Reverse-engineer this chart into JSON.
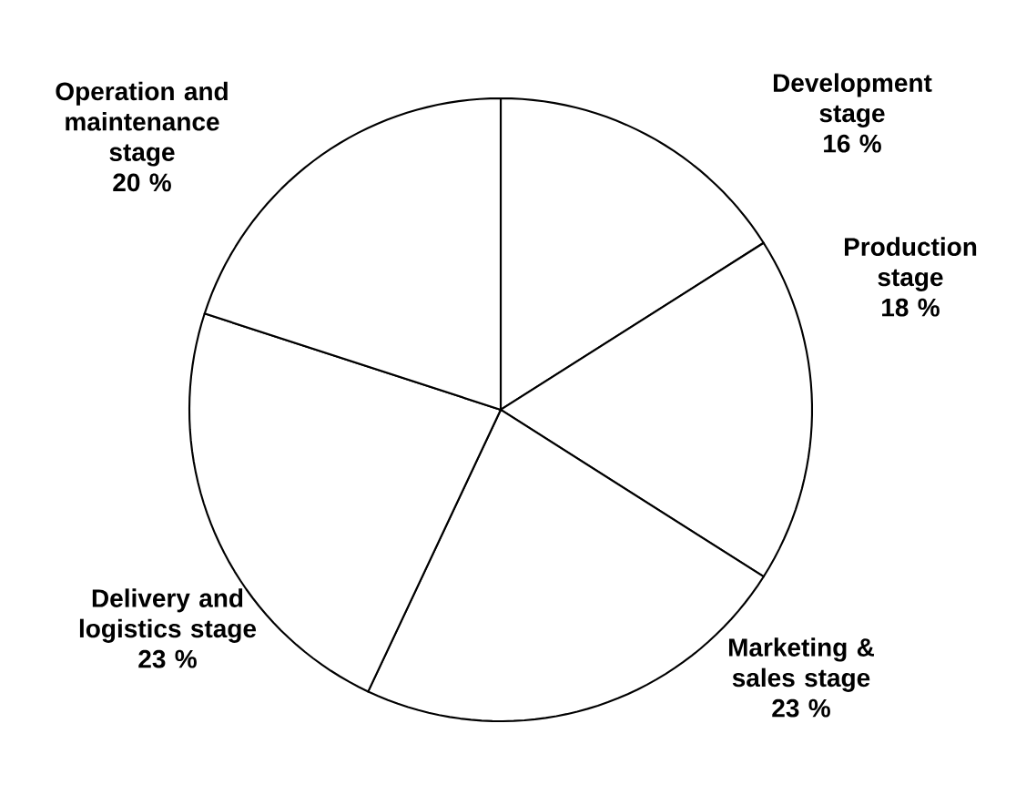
{
  "chart_data": {
    "type": "pie",
    "categories": [
      "Development stage",
      "Production stage",
      "Marketing & sales stage",
      "Delivery and logistics stage",
      "Operation and maintenance stage"
    ],
    "values": [
      16,
      18,
      23,
      23,
      20
    ],
    "value_labels": [
      "16 %",
      "18 %",
      "23 %",
      "23 %",
      "20 %"
    ],
    "colors": [
      "#ffffff",
      "#ffffff",
      "#ffffff",
      "#ffffff",
      "#ffffff"
    ]
  }
}
